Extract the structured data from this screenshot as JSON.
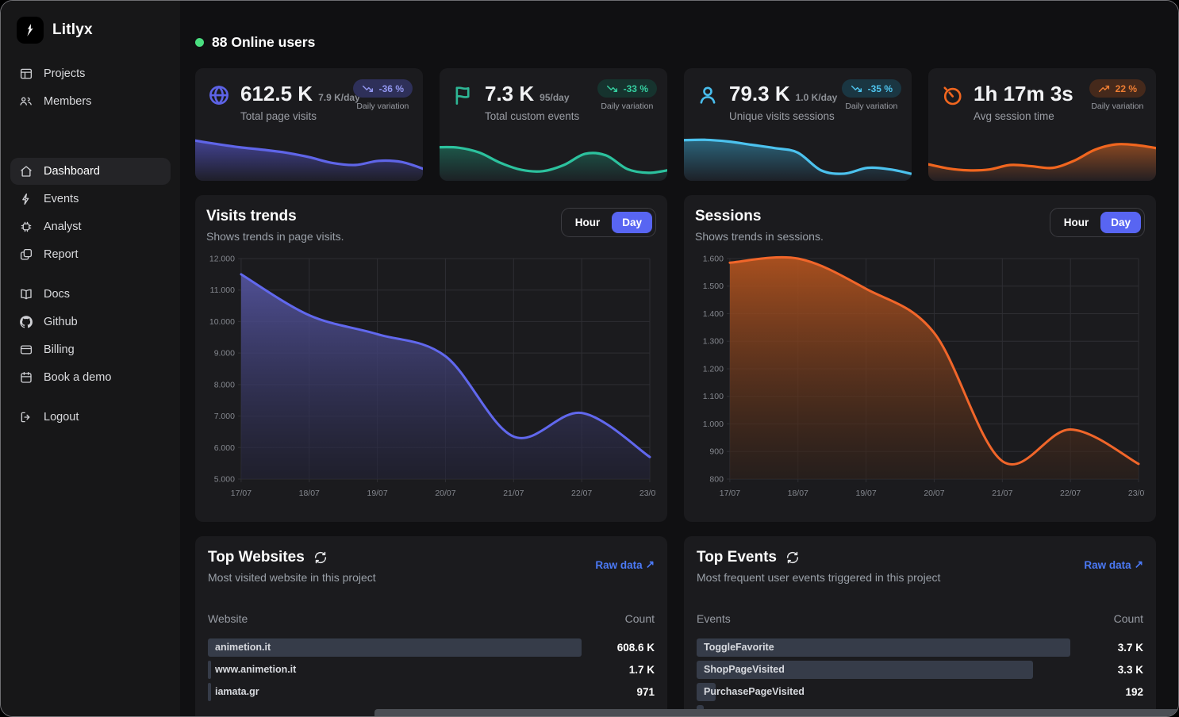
{
  "colors": {
    "accent": "#5865f2",
    "link": "#4b79f5",
    "online": "#4ade80",
    "bar": "#363c49"
  },
  "sidebar": {
    "logo_label": "Litlyx",
    "logo_icon": "litlyx-bird-icon",
    "sections": [
      {
        "items": [
          {
            "label": "Projects",
            "icon": "projects-icon",
            "active": false
          },
          {
            "label": "Members",
            "icon": "members-icon",
            "active": false
          }
        ]
      },
      {
        "items": [
          {
            "label": "Dashboard",
            "icon": "home-icon",
            "active": true
          },
          {
            "label": "Events",
            "icon": "lightning-icon",
            "active": false
          },
          {
            "label": "Analyst",
            "icon": "chip-icon",
            "active": false
          },
          {
            "label": "Report",
            "icon": "report-icon",
            "active": false
          }
        ]
      },
      {
        "items": [
          {
            "label": "Docs",
            "icon": "docs-icon",
            "active": false
          },
          {
            "label": "Github",
            "icon": "github-icon",
            "active": false
          },
          {
            "label": "Billing",
            "icon": "billing-icon",
            "active": false
          },
          {
            "label": "Book a demo",
            "icon": "calendar-icon",
            "active": false
          }
        ]
      },
      {
        "items": [
          {
            "label": "Logout",
            "icon": "logout-icon",
            "active": false
          }
        ]
      }
    ]
  },
  "header": {
    "online_users": "88 Online users",
    "dot_icon": "online-dot"
  },
  "cards": [
    {
      "icon": "globe-icon",
      "accent": "#5d63e6",
      "value": "612.5 K",
      "rate": "7.9 K/day",
      "title": "Total page visits",
      "badge": "-36 %",
      "badge_icon": "trend-down-icon",
      "badge_bg": "#2e3059",
      "badge_color": "#9297f0",
      "variation_label": "Daily variation",
      "spark_line": "#5f65e8",
      "spark_fill": "#45459a",
      "spark": [
        0.85,
        0.76,
        0.68,
        0.62,
        0.55,
        0.44,
        0.3,
        0.25,
        0.35,
        0.32,
        0.14
      ]
    },
    {
      "icon": "flag-icon",
      "accent": "#2eb695",
      "value": "7.3 K",
      "rate": "95/day",
      "title": "Total custom events",
      "badge": "-33 %",
      "badge_icon": "trend-down-icon",
      "badge_bg": "#16332e",
      "badge_color": "#35cfa0",
      "variation_label": "Daily variation",
      "spark_line": "#2cc29e",
      "spark_fill": "#1d5a4c",
      "spark": [
        0.68,
        0.67,
        0.55,
        0.3,
        0.13,
        0.1,
        0.25,
        0.52,
        0.48,
        0.15,
        0.06,
        0.13
      ]
    },
    {
      "icon": "user-icon",
      "accent": "#49bdec",
      "value": "79.3 K",
      "rate": "1.0 K/day",
      "title": "Unique visits sessions",
      "badge": "-35 %",
      "badge_icon": "trend-down-icon",
      "badge_bg": "#1a3642",
      "badge_color": "#4fc4ee",
      "variation_label": "Daily variation",
      "spark_line": "#4cc2ee",
      "spark_fill": "#2c6880",
      "spark": [
        0.85,
        0.86,
        0.82,
        0.74,
        0.66,
        0.55,
        0.12,
        0.04,
        0.18,
        0.14,
        0.02
      ]
    },
    {
      "icon": "timer-icon",
      "accent": "#f1661f",
      "value": "1h 17m 3s",
      "rate": "",
      "title": "Avg session time",
      "badge": "22 %",
      "badge_icon": "trend-up-icon",
      "badge_bg": "#45291b",
      "badge_color": "#ef7e33",
      "variation_label": "Daily variation",
      "spark_line": "#f1661f",
      "spark_fill": "#8e4a22",
      "spark": [
        0.28,
        0.17,
        0.12,
        0.14,
        0.25,
        0.22,
        0.18,
        0.35,
        0.62,
        0.75,
        0.73,
        0.65
      ]
    }
  ],
  "chart_data": [
    {
      "type": "area",
      "title": "Visits trends",
      "subtitle": "Shows trends in page visits.",
      "toggle": [
        "Hour",
        "Day"
      ],
      "toggle_selected": "Day",
      "x": [
        "17/07",
        "18/07",
        "19/07",
        "20/07",
        "21/07",
        "22/07",
        "23/07"
      ],
      "values": [
        11500,
        10200,
        9600,
        8900,
        6350,
        7100,
        5700
      ],
      "ylim": [
        5000,
        12000
      ],
      "ytick_labels": [
        "12.000",
        "11.000",
        "10.000",
        "9.000",
        "8.000",
        "7.000",
        "6.000",
        "5.000"
      ],
      "xlabel": "",
      "ylabel": "",
      "grid": true,
      "legend": "none",
      "line_color": "#6168ee",
      "fill_top": "#54549f",
      "fill_bottom": "#232338"
    },
    {
      "type": "area",
      "title": "Sessions",
      "subtitle": "Shows trends in sessions.",
      "toggle": [
        "Hour",
        "Day"
      ],
      "toggle_selected": "Day",
      "x": [
        "17/07",
        "18/07",
        "19/07",
        "20/07",
        "21/07",
        "22/07",
        "23/07"
      ],
      "values": [
        1585,
        1600,
        1490,
        1330,
        865,
        980,
        855
      ],
      "ylim": [
        800,
        1600
      ],
      "ytick_labels": [
        "1.600",
        "1.500",
        "1.400",
        "1.300",
        "1.200",
        "1.100",
        "1.000",
        "900",
        "800"
      ],
      "xlabel": "",
      "ylabel": "",
      "grid": true,
      "legend": "none",
      "line_color": "#f1662a",
      "fill_top": "#b4541f",
      "fill_bottom": "#2f211a"
    }
  ],
  "tables": [
    {
      "title": "Top Websites",
      "refresh_icon": "refresh-icon",
      "link_label": "Raw data",
      "link_arrow": "↗",
      "subtitle": "Most visited website in this project",
      "col_left": "Website",
      "col_right": "Count",
      "rows": [
        {
          "label": "animetion.it",
          "count": "608.6 K",
          "bar": 1.0
        },
        {
          "label": "www.animetion.it",
          "count": "1.7 K",
          "bar": 0.003
        },
        {
          "label": "iamata.gr",
          "count": "971",
          "bar": 0.002
        }
      ]
    },
    {
      "title": "Top Events",
      "refresh_icon": "refresh-icon",
      "link_label": "Raw data",
      "link_arrow": "↗",
      "subtitle": "Most frequent user events triggered in this project",
      "col_left": "Events",
      "col_right": "Count",
      "rows": [
        {
          "label": "ToggleFavorite",
          "count": "3.7 K",
          "bar": 1.0
        },
        {
          "label": "ShopPageVisited",
          "count": "3.3 K",
          "bar": 0.9
        },
        {
          "label": "PurchasePageVisited",
          "count": "192",
          "bar": 0.052
        },
        {
          "label": "",
          "count": "",
          "bar": 0.02
        }
      ]
    }
  ]
}
